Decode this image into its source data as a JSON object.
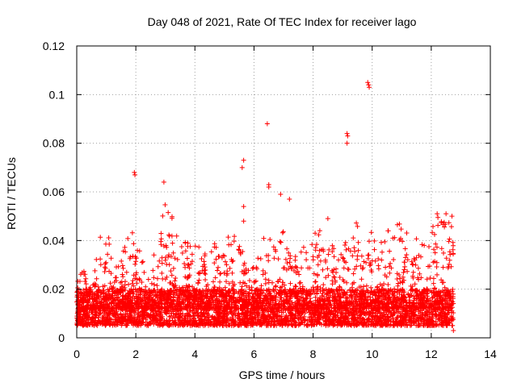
{
  "chart_data": {
    "type": "scatter",
    "title": "Day 048 of 2021, Rate Of TEC Index for receiver lago",
    "xlabel": "GPS time / hours",
    "ylabel": "ROTI / TECUs",
    "xlim": [
      0,
      14
    ],
    "ylim": [
      0,
      0.12
    ],
    "xticks": [
      "0",
      "2",
      "4",
      "6",
      "8",
      "10",
      "12",
      "14"
    ],
    "yticks": [
      "0",
      "0.02",
      "0.04",
      "0.06",
      "0.08",
      "0.1",
      "0.12"
    ],
    "grid": true,
    "marker": "+",
    "color": "#ff0000",
    "x_data_extent": [
      0,
      12.75
    ],
    "baseline_band": [
      0.005,
      0.02
    ],
    "notable_points": [
      {
        "x": 1.95,
        "y": 0.068
      },
      {
        "x": 1.97,
        "y": 0.067
      },
      {
        "x": 2.95,
        "y": 0.064
      },
      {
        "x": 5.65,
        "y": 0.073
      },
      {
        "x": 5.6,
        "y": 0.07
      },
      {
        "x": 5.65,
        "y": 0.054
      },
      {
        "x": 5.65,
        "y": 0.048
      },
      {
        "x": 6.45,
        "y": 0.088
      },
      {
        "x": 6.5,
        "y": 0.063
      },
      {
        "x": 6.5,
        "y": 0.062
      },
      {
        "x": 6.9,
        "y": 0.059
      },
      {
        "x": 7.2,
        "y": 0.057
      },
      {
        "x": 8.5,
        "y": 0.049
      },
      {
        "x": 9.15,
        "y": 0.084
      },
      {
        "x": 9.17,
        "y": 0.083
      },
      {
        "x": 9.15,
        "y": 0.08
      },
      {
        "x": 9.85,
        "y": 0.105
      },
      {
        "x": 9.88,
        "y": 0.104
      },
      {
        "x": 9.9,
        "y": 0.103
      },
      {
        "x": 12.2,
        "y": 0.051
      },
      {
        "x": 12.5,
        "y": 0.051
      },
      {
        "x": 12.7,
        "y": 0.05
      },
      {
        "x": 12.75,
        "y": 0.003
      }
    ],
    "activity_profile": [
      {
        "x": 0.0,
        "y_max": 0.03
      },
      {
        "x": 0.5,
        "y_max": 0.025
      },
      {
        "x": 0.9,
        "y_max": 0.047
      },
      {
        "x": 1.4,
        "y_max": 0.033
      },
      {
        "x": 1.9,
        "y_max": 0.046
      },
      {
        "x": 2.5,
        "y_max": 0.028
      },
      {
        "x": 3.0,
        "y_max": 0.058
      },
      {
        "x": 3.5,
        "y_max": 0.04
      },
      {
        "x": 4.0,
        "y_max": 0.04
      },
      {
        "x": 4.5,
        "y_max": 0.035
      },
      {
        "x": 5.0,
        "y_max": 0.046
      },
      {
        "x": 5.5,
        "y_max": 0.04
      },
      {
        "x": 6.0,
        "y_max": 0.03
      },
      {
        "x": 6.5,
        "y_max": 0.047
      },
      {
        "x": 7.0,
        "y_max": 0.044
      },
      {
        "x": 7.5,
        "y_max": 0.033
      },
      {
        "x": 8.0,
        "y_max": 0.046
      },
      {
        "x": 8.5,
        "y_max": 0.044
      },
      {
        "x": 9.0,
        "y_max": 0.035
      },
      {
        "x": 9.3,
        "y_max": 0.048
      },
      {
        "x": 9.8,
        "y_max": 0.046
      },
      {
        "x": 10.3,
        "y_max": 0.04
      },
      {
        "x": 10.8,
        "y_max": 0.049
      },
      {
        "x": 11.3,
        "y_max": 0.044
      },
      {
        "x": 11.8,
        "y_max": 0.04
      },
      {
        "x": 12.2,
        "y_max": 0.05
      },
      {
        "x": 12.75,
        "y_max": 0.05
      }
    ]
  }
}
